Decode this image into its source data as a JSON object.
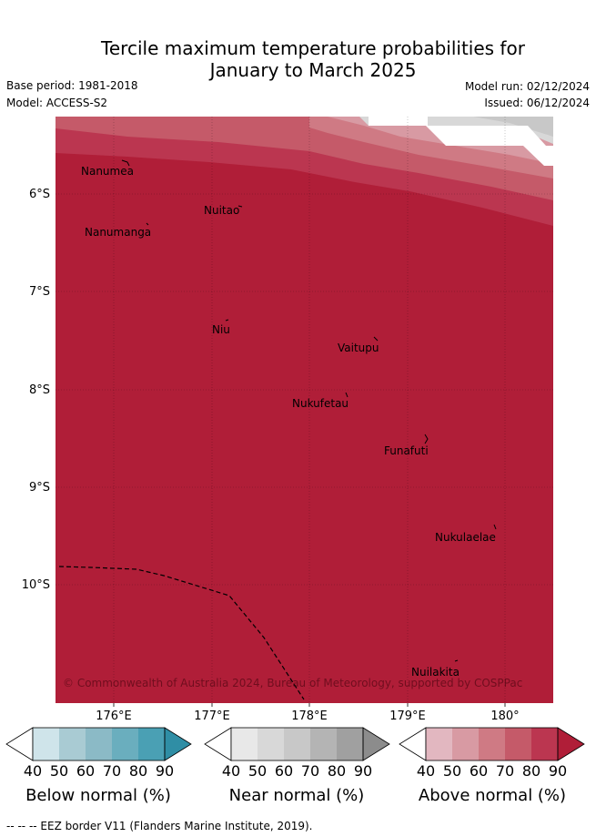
{
  "header": {
    "title_line1": "Tercile maximum temperature probabilities for",
    "title_line2": "January to March 2025",
    "base_period": "Base period: 1981-2018",
    "model": "Model: ACCESS-S2",
    "model_run": "Model run: 02/12/2024",
    "issued": "Issued: 06/12/2024"
  },
  "map": {
    "lat_labels": [
      "6°S",
      "7°S",
      "8°S",
      "9°S",
      "10°S"
    ],
    "lon_labels": [
      "176°E",
      "177°E",
      "178°E",
      "179°E",
      "180°"
    ],
    "islands": [
      {
        "name": "Nanumea"
      },
      {
        "name": "Nuitao"
      },
      {
        "name": "Nanumanga"
      },
      {
        "name": "Niu"
      },
      {
        "name": "Vaitupu"
      },
      {
        "name": "Nukufetau"
      },
      {
        "name": "Funafuti"
      },
      {
        "name": "Nukulaelae"
      },
      {
        "name": "Nuilakita"
      }
    ],
    "copyright": "© Commonwealth of Australia 2024, Bureau of Meteorology, supported by COSPPac"
  },
  "colorbars": {
    "ticks": [
      "40",
      "50",
      "60",
      "70",
      "80",
      "90"
    ],
    "below": {
      "title": "Below normal (%)",
      "colors": [
        "#ffffff",
        "#cfe4ea",
        "#a9cbd3",
        "#8bbac6",
        "#6aaebe",
        "#4aa0b4",
        "#2f8ea5"
      ]
    },
    "near": {
      "title": "Near normal (%)",
      "colors": [
        "#ffffff",
        "#e8e8e8",
        "#d8d8d8",
        "#c8c8c8",
        "#b4b4b4",
        "#a0a0a0",
        "#8c8c8c"
      ]
    },
    "above": {
      "title": "Above normal (%)",
      "colors": [
        "#ffffff",
        "#e2b7c0",
        "#d89aa3",
        "#cf7a84",
        "#c55a69",
        "#bb3650",
        "#b01e38"
      ]
    }
  },
  "legend": {
    "eez_text": "--  --  -- EEZ border V11 (Flanders Marine Institute, 2019)."
  },
  "colors": {
    "above_90": "#b01e38",
    "above_80": "#bb3650",
    "above_70": "#c55a69",
    "above_60": "#cf7a84",
    "above_50": "#d89aa3",
    "near_60": "#c8c8c8",
    "near_50": "#d8d8d8"
  }
}
